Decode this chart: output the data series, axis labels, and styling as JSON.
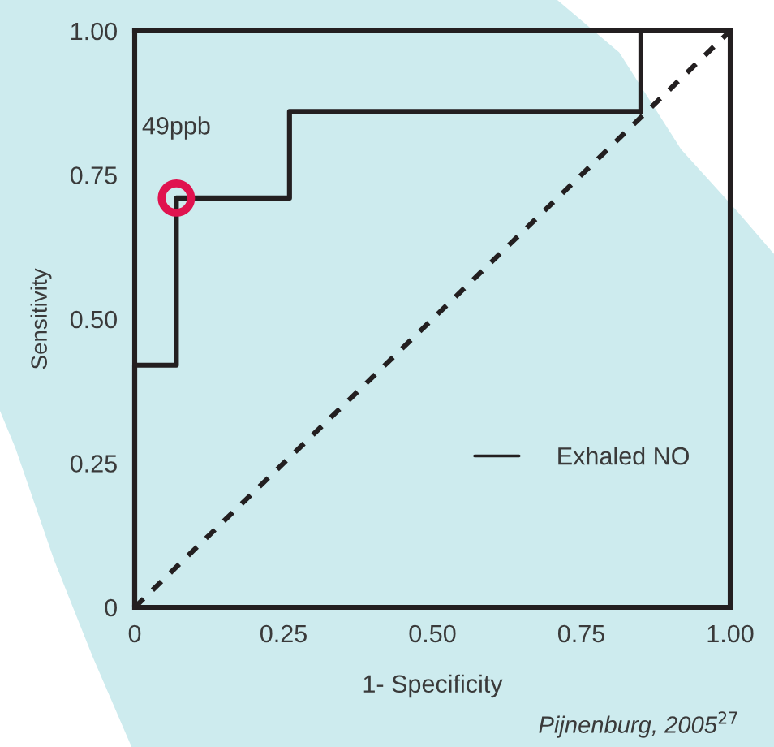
{
  "chart_data": {
    "type": "line",
    "xlabel": "1- Specificity",
    "ylabel": "Sensitivity",
    "series": [
      {
        "name": "Exhaled NO",
        "type": "step",
        "color": "#231f20",
        "line_style": "solid",
        "marker": "none",
        "x": [
          0,
          0.07,
          0.26,
          0.85,
          1.0
        ],
        "values": [
          0,
          0.42,
          0.71,
          0.86,
          1.0
        ]
      },
      {
        "color": "#231f20",
        "line_style": "dashed",
        "marker": "none",
        "x": [
          0,
          1.0
        ],
        "values": [
          0,
          1.0
        ]
      },
      {
        "type": "scatter",
        "color": "#e0134f",
        "marker": "circle",
        "x": [
          0.07
        ],
        "values": [
          0.71
        ]
      }
    ],
    "xlim": [
      0,
      1.0
    ],
    "ylim": [
      0,
      1.0
    ],
    "xticks": [
      0,
      0.25,
      {
        "value": 0.5,
        "label": "0.50"
      },
      0.75,
      {
        "value": 1.0,
        "label": "1.00"
      }
    ],
    "yticks": [
      0,
      0.25,
      {
        "value": 0.5,
        "label": "0.50"
      },
      0.75,
      {
        "value": 1.0,
        "label": "1.00"
      }
    ],
    "grid": false,
    "legend": "bottom right",
    "annotations": [
      {
        "text": "49ppb",
        "x": 0.07,
        "y": 0.71
      },
      "Pijnenburg, 2005$^{27}$"
    ]
  }
}
